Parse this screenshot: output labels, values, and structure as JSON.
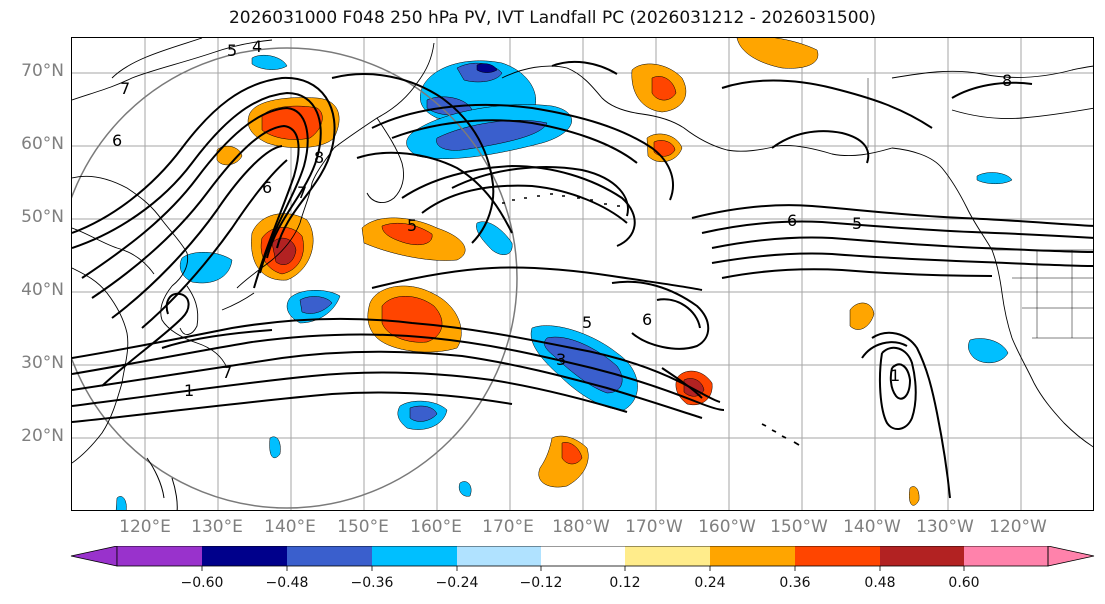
{
  "title": "2026031000 F048 250 hPa PV, IVT Landfall PC (2026031212 - 2026031500)",
  "lat_labels": [
    "70°N",
    "60°N",
    "50°N",
    "40°N",
    "30°N",
    "20°N"
  ],
  "lon_labels": [
    "120°E",
    "130°E",
    "140°E",
    "150°E",
    "160°E",
    "170°E",
    "180°W",
    "170°W",
    "160°W",
    "150°W",
    "140°W",
    "130°W",
    "120°W"
  ],
  "colorbar": {
    "colors": [
      "#9932cc",
      "#00008b",
      "#3a5fcd",
      "#00bfff",
      "#b0e2ff",
      "#ffffff",
      "#ffec8b",
      "#ffa500",
      "#ff4500",
      "#b22222",
      "#ff82ab"
    ],
    "tick_labels": [
      "−0.60",
      "−0.48",
      "−0.36",
      "−0.24",
      "−0.12",
      "0.12",
      "0.24",
      "0.36",
      "0.48",
      "0.60"
    ]
  },
  "pv_contour_labels": [
    "7",
    "6",
    "5",
    "4",
    "8",
    "7",
    "6",
    "5",
    "5",
    "6",
    "7",
    "1",
    "5",
    "6",
    "3",
    "1",
    "8"
  ],
  "colors": {
    "coast": "#000000",
    "grid": "#808080",
    "contour": "#000000",
    "circle": "#7a7a7a"
  }
}
